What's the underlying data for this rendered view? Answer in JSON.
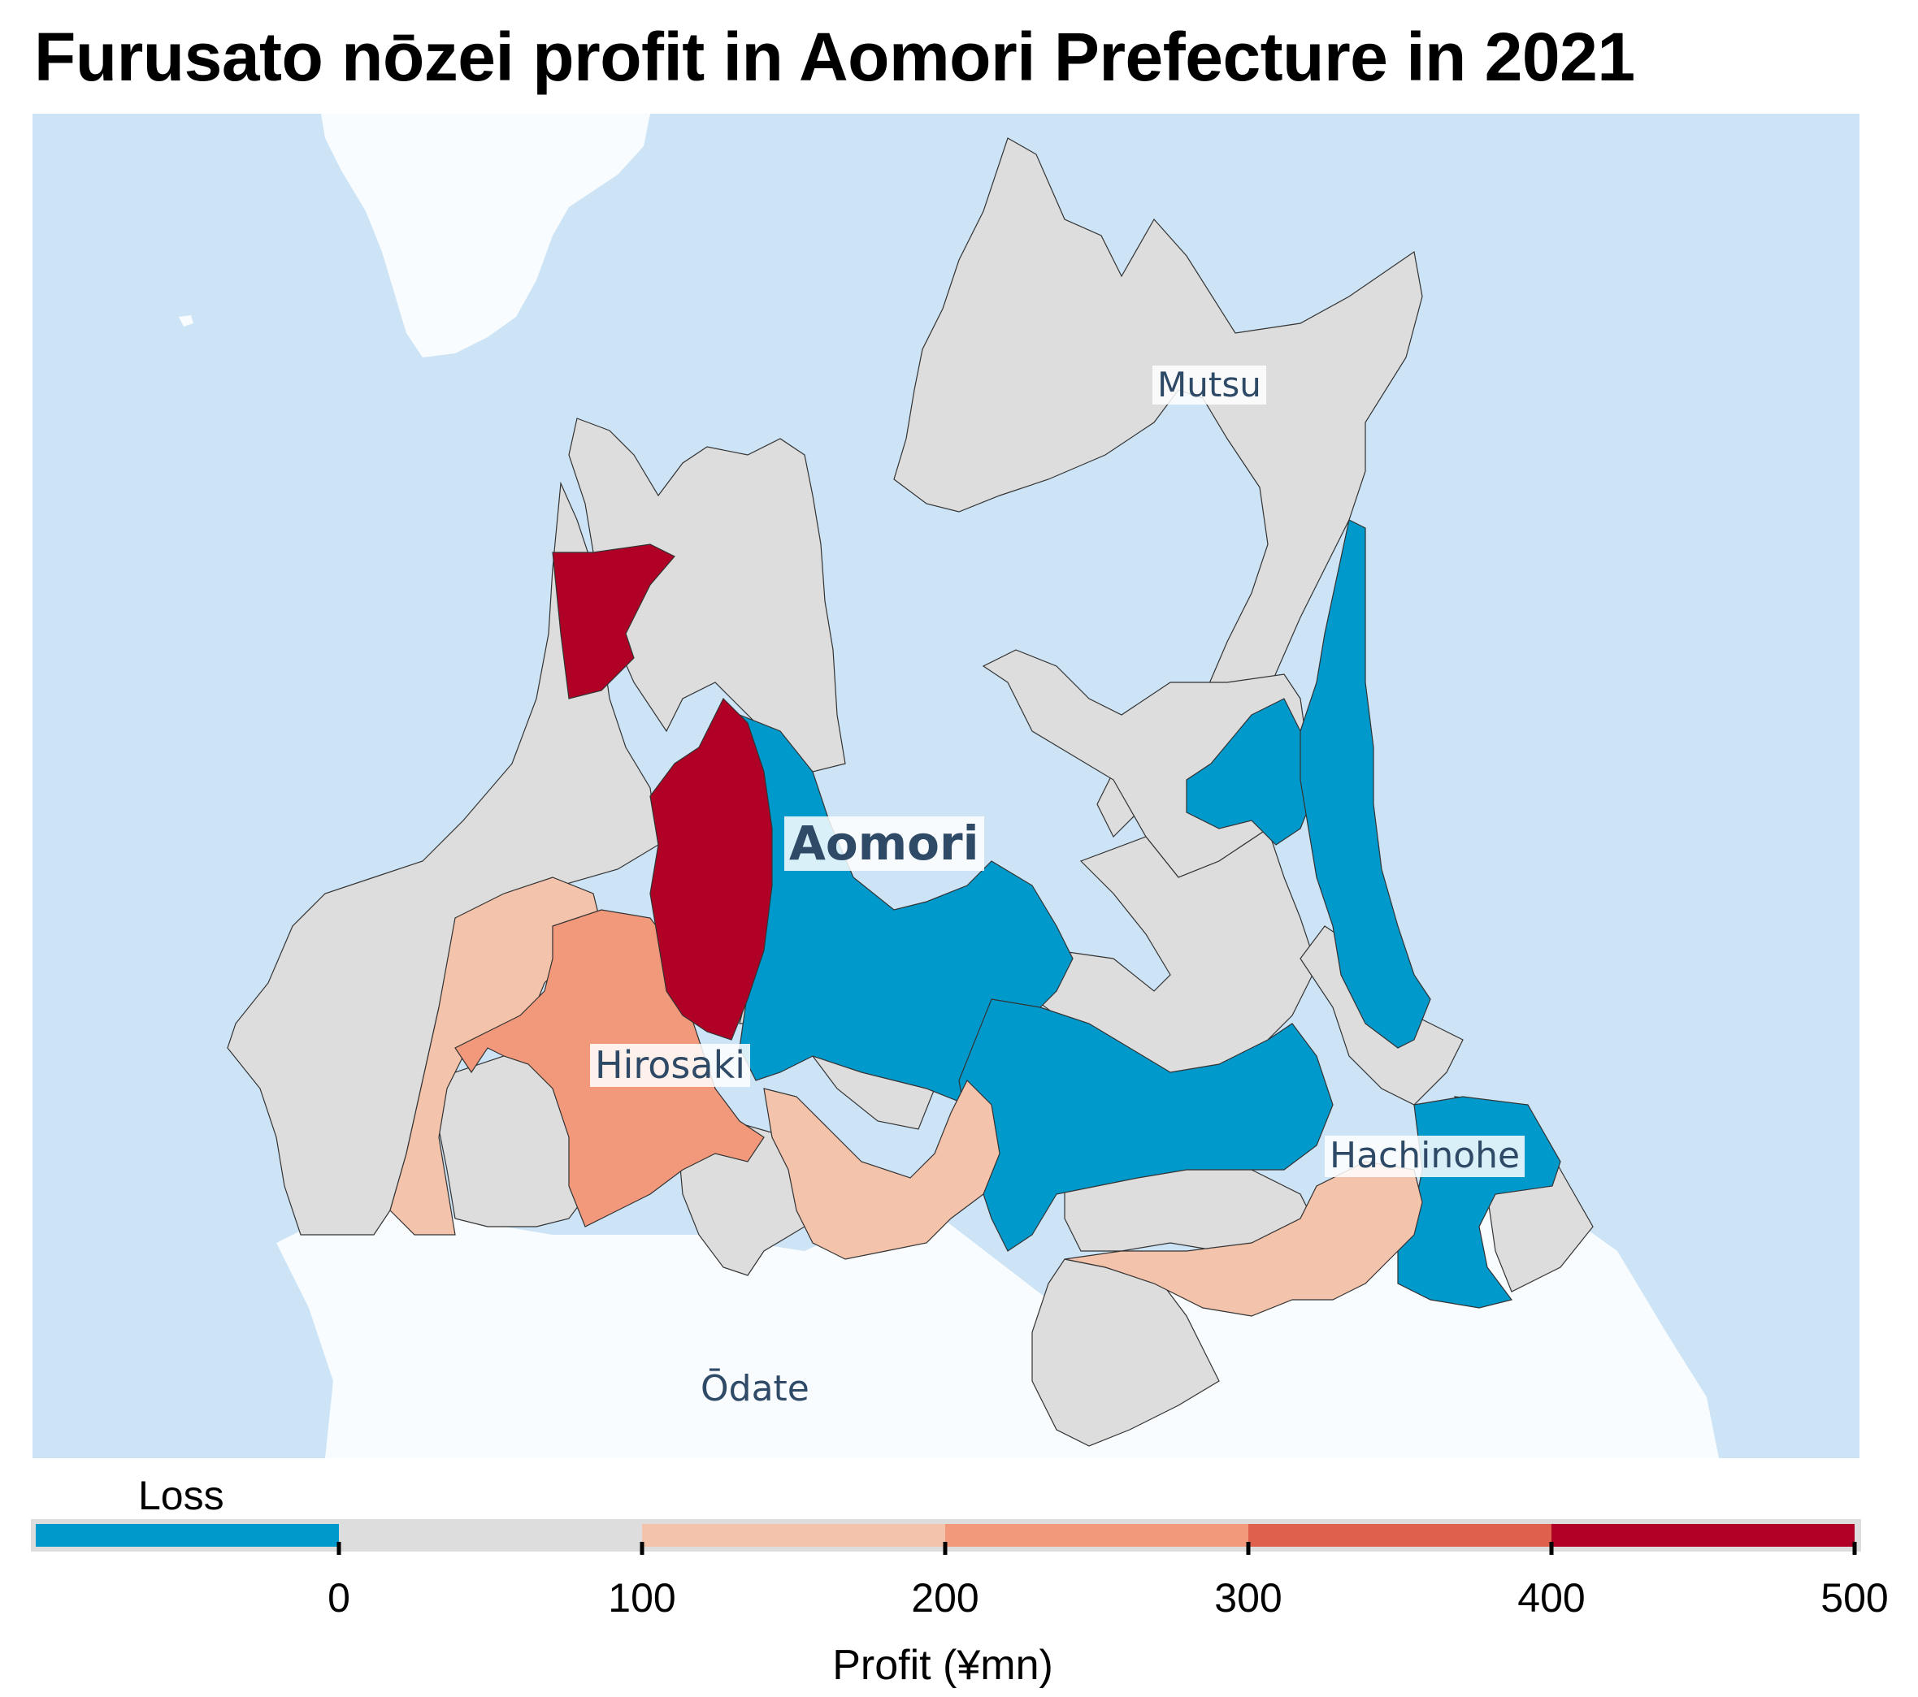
{
  "title": "Furusato nōzei profit in Aomori Prefecture in 2021",
  "colors": {
    "sea": "#cde4f6",
    "land_outside": "#f8fcff",
    "no_data": "#dddddd",
    "loss": "#0099cc",
    "bin_0_100": "#dddddd",
    "bin_100_200": "#f4c3ab",
    "bin_200_300": "#f3997b",
    "bin_300_400": "#e0604e",
    "bin_400_500": "#b10026",
    "border": "#333333"
  },
  "cities": [
    {
      "name": "Mutsu",
      "style": "regular"
    },
    {
      "name": "Aomori",
      "style": "bold"
    },
    {
      "name": "Hirosaki",
      "style": "regular"
    },
    {
      "name": "Hachinohe",
      "style": "regular"
    },
    {
      "name": "Ōdate",
      "style": "regular"
    }
  ],
  "legend": {
    "loss_label": "Loss",
    "axis_title": "Profit (¥mn)",
    "ticks": [
      "0",
      "100",
      "200",
      "300",
      "400",
      "500"
    ],
    "bins": [
      {
        "label": "Loss",
        "color": "#0099cc"
      },
      {
        "from": 0,
        "to": 100,
        "color": "#dddddd"
      },
      {
        "from": 100,
        "to": 200,
        "color": "#f4c3ab"
      },
      {
        "from": 200,
        "to": 300,
        "color": "#f3997b"
      },
      {
        "from": 300,
        "to": 400,
        "color": "#e0604e"
      },
      {
        "from": 400,
        "to": 500,
        "color": "#b10026"
      }
    ]
  }
}
